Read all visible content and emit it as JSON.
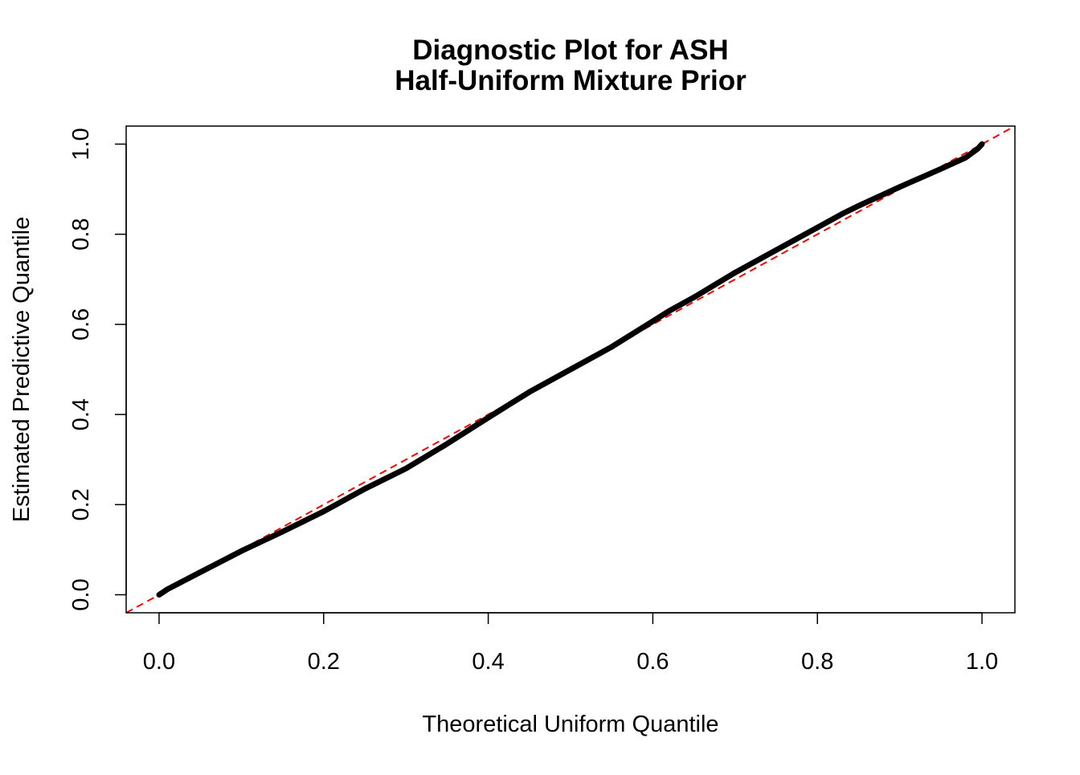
{
  "chart_data": {
    "type": "line",
    "title": "Diagnostic Plot for ASH",
    "subtitle": "Half-Uniform Mixture Prior",
    "xlabel": "Theoretical Uniform Quantile",
    "ylabel": "Estimated Predictive Quantile",
    "xlim": [
      -0.04,
      1.04
    ],
    "ylim": [
      -0.04,
      1.04
    ],
    "x_ticks": [
      "0.0",
      "0.2",
      "0.4",
      "0.6",
      "0.8",
      "1.0"
    ],
    "y_ticks": [
      "0.0",
      "0.2",
      "0.4",
      "0.6",
      "0.8",
      "1.0"
    ],
    "grid": false,
    "series": [
      {
        "color": "#000000",
        "x": [
          0.0,
          0.01,
          0.05,
          0.1,
          0.15,
          0.2,
          0.25,
          0.3,
          0.35,
          0.4,
          0.45,
          0.5,
          0.55,
          0.6,
          0.62,
          0.65,
          0.7,
          0.75,
          0.8,
          0.83,
          0.85,
          0.9,
          0.95,
          0.98,
          0.995,
          1.0
        ],
        "y": [
          0.0,
          0.012,
          0.05,
          0.097,
          0.14,
          0.185,
          0.235,
          0.28,
          0.335,
          0.393,
          0.45,
          0.5,
          0.55,
          0.607,
          0.63,
          0.66,
          0.715,
          0.765,
          0.815,
          0.845,
          0.863,
          0.905,
          0.945,
          0.97,
          0.99,
          1.0
        ]
      }
    ],
    "reference_line": {
      "type": "y=x",
      "style": "dashed",
      "color": "#ff0000"
    }
  }
}
